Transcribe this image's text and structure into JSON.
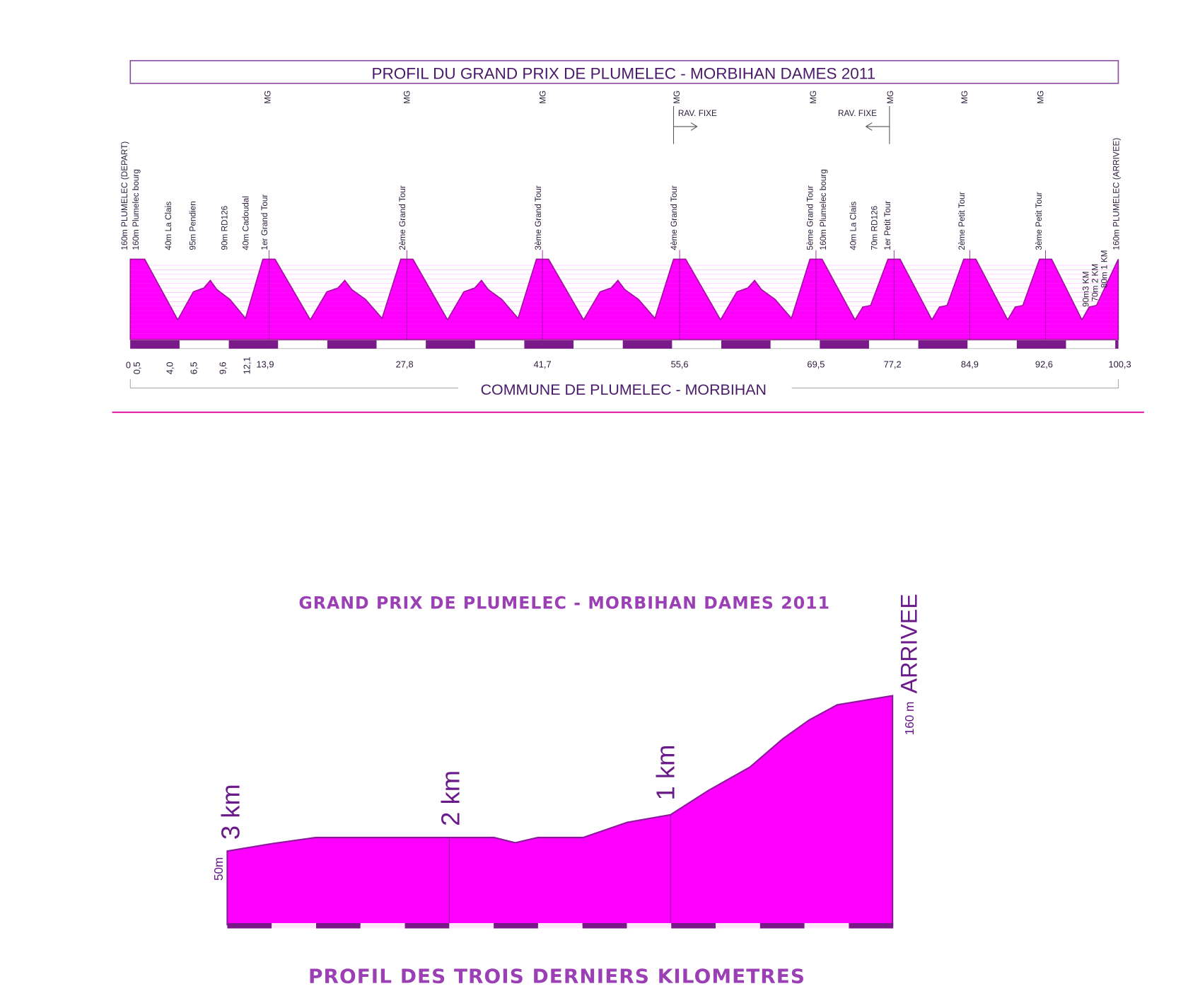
{
  "top": {
    "title": "PROFIL DU GRAND PRIX DE PLUMELEC - MORBIHAN DAMES 2011",
    "points": [
      "160m PLUMELEC (DEPART)",
      "160m Plumelec bourg",
      "40m La Clais",
      "95m Pendien",
      "90m RD126",
      "40m Cadoudal",
      "1er Grand Tour",
      "2ème Grand Tour",
      "3ème Grand Tour",
      "4ème Grand Tour",
      "5ème Grand Tour",
      "160m Plumelec bourg",
      "40m La Clais",
      "70m RD126",
      "1er Petit Tour",
      "2ème Petit Tour",
      "3ème Petit Tour",
      "160m PLUMELEC (ARRIVEE)",
      "90m3 KM",
      "70m 2 KM",
      "80m 1 KM"
    ],
    "mg": [
      "MG",
      "MG",
      "MG",
      "MG",
      "MG",
      "MG",
      "MG",
      "MG"
    ],
    "rav": [
      "RAV. FIXE",
      "RAV. FIXE"
    ],
    "km": [
      "0",
      "0,5",
      "4,0",
      "6,5",
      "9,6",
      "12,1",
      "13,9",
      "27,8",
      "41,7",
      "55,6",
      "69,5",
      "77,2",
      "84,9",
      "92,6",
      "100,3"
    ],
    "footer": "COMMUNE DE PLUMELEC - MORBIHAN"
  },
  "bottom": {
    "title": "GRAND PRIX DE PLUMELEC - MORBIHAN DAMES 2011",
    "km_labels": [
      "3 km",
      "2 km",
      "1 km"
    ],
    "arrival": "ARRIVEE",
    "end_altitude": "160 m",
    "start_altitude": "50m",
    "subtitle": "PROFIL DES TROIS DERNIERS KILOMETRES"
  }
}
